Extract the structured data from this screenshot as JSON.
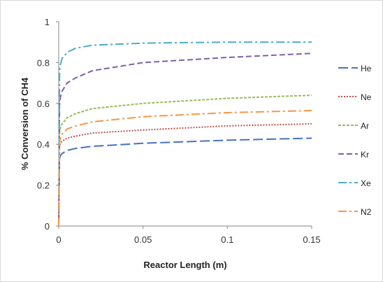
{
  "chart_data": {
    "type": "line",
    "title": "",
    "xlabel": "Reactor Length (m)",
    "ylabel": "% Conversion of CH4",
    "xlim": [
      0,
      0.15
    ],
    "ylim": [
      0,
      1
    ],
    "x_ticks": [
      "0",
      "0.05",
      "0.1",
      "0.15"
    ],
    "y_ticks": [
      "0",
      "0.2",
      "0.4",
      "0.6",
      "0.8",
      "1"
    ],
    "grid": false,
    "legend_position": "right",
    "series": [
      {
        "name": "He",
        "color": "#4472c4",
        "dash": "long-dash",
        "x": [
          0,
          0.0005,
          0.001,
          0.002,
          0.005,
          0.01,
          0.02,
          0.05,
          0.1,
          0.15
        ],
        "y": [
          0,
          0.33,
          0.345,
          0.355,
          0.37,
          0.38,
          0.39,
          0.405,
          0.42,
          0.43
        ]
      },
      {
        "name": "Ne",
        "color": "#c0504d",
        "dash": "dotted",
        "x": [
          0,
          0.0005,
          0.001,
          0.002,
          0.005,
          0.01,
          0.02,
          0.05,
          0.1,
          0.15
        ],
        "y": [
          0,
          0.39,
          0.405,
          0.415,
          0.43,
          0.44,
          0.455,
          0.47,
          0.49,
          0.5
        ]
      },
      {
        "name": "Ar",
        "color": "#9bbb59",
        "dash": "short-dash",
        "x": [
          0,
          0.0005,
          0.001,
          0.002,
          0.005,
          0.01,
          0.02,
          0.05,
          0.1,
          0.15
        ],
        "y": [
          0,
          0.46,
          0.48,
          0.5,
          0.53,
          0.55,
          0.575,
          0.6,
          0.625,
          0.64
        ]
      },
      {
        "name": "Kr",
        "color": "#7f5fa8",
        "dash": "dashed",
        "x": [
          0,
          0.0005,
          0.001,
          0.002,
          0.005,
          0.01,
          0.02,
          0.05,
          0.1,
          0.15
        ],
        "y": [
          0,
          0.6,
          0.63,
          0.66,
          0.7,
          0.725,
          0.76,
          0.8,
          0.825,
          0.845
        ]
      },
      {
        "name": "Xe",
        "color": "#4bacc6",
        "dash": "dash-dot",
        "x": [
          0,
          0.0005,
          0.001,
          0.002,
          0.005,
          0.01,
          0.02,
          0.05,
          0.1,
          0.15
        ],
        "y": [
          0,
          0.76,
          0.79,
          0.82,
          0.85,
          0.87,
          0.885,
          0.895,
          0.9,
          0.9
        ]
      },
      {
        "name": "N2",
        "color": "#f79646",
        "dash": "dash-dot",
        "x": [
          0,
          0.0005,
          0.001,
          0.002,
          0.005,
          0.01,
          0.02,
          0.05,
          0.1,
          0.15
        ],
        "y": [
          0,
          0.41,
          0.43,
          0.45,
          0.475,
          0.49,
          0.51,
          0.535,
          0.555,
          0.565
        ]
      }
    ]
  }
}
